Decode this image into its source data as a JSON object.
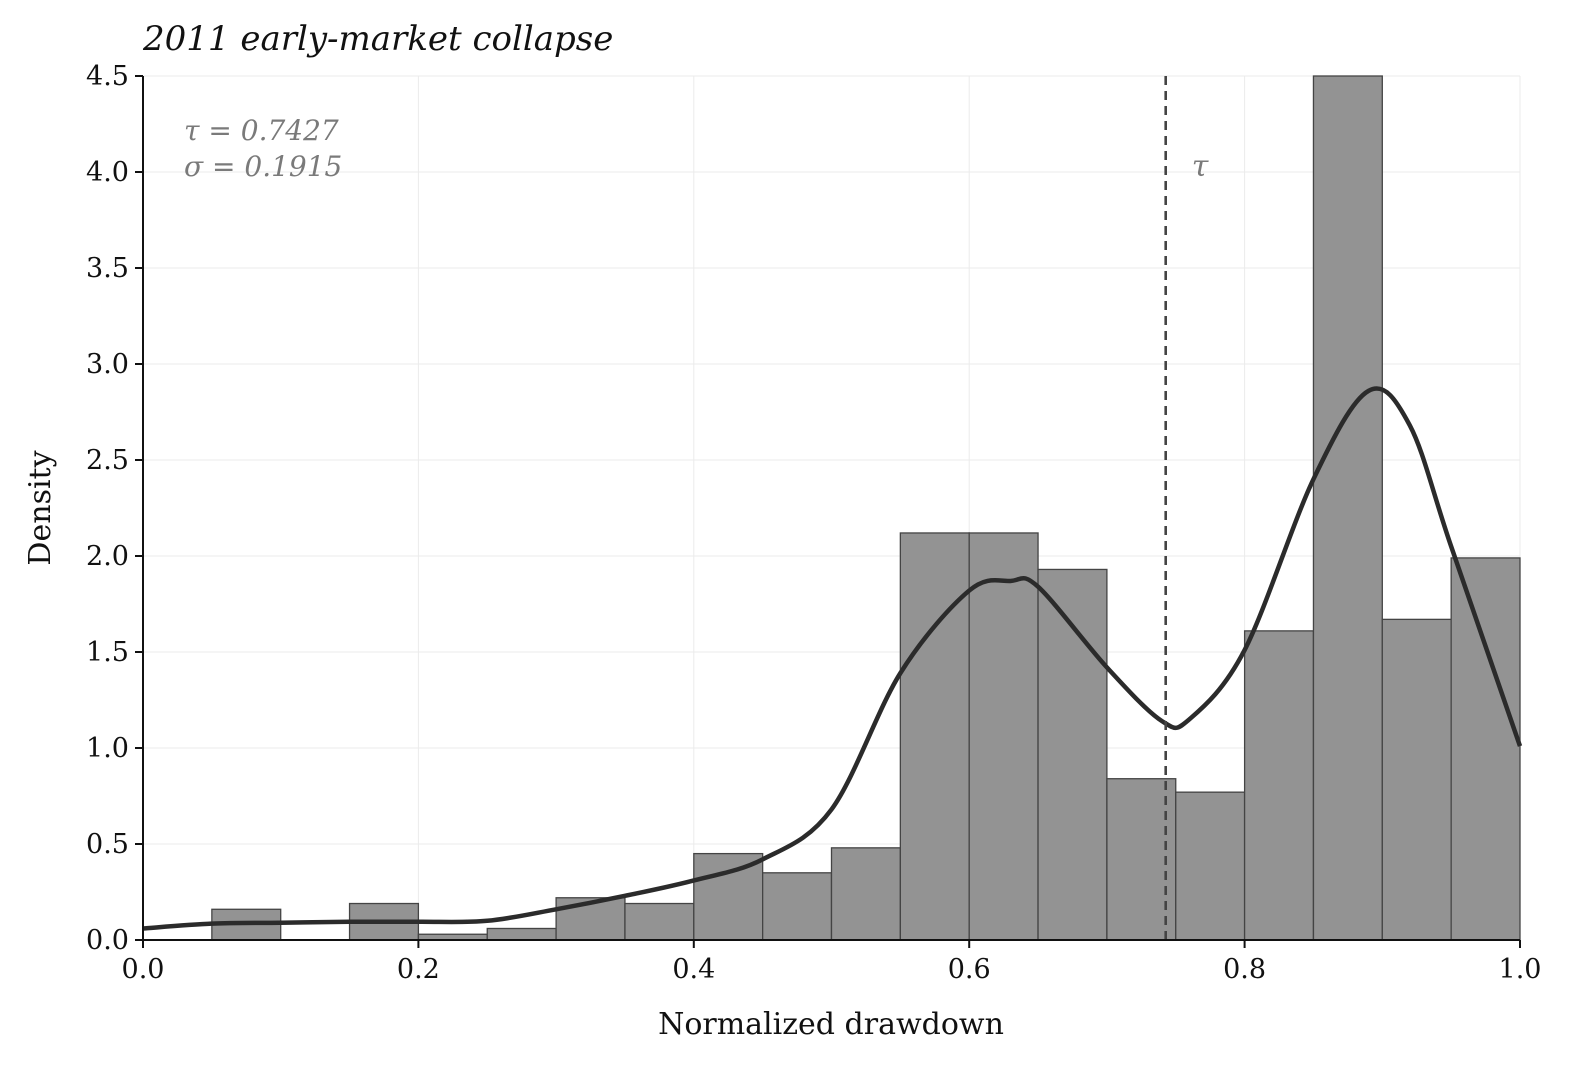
{
  "chart_data": {
    "type": "bar",
    "title": "2011 early-market collapse",
    "xlabel": "Normalized drawdown",
    "ylabel": "Density",
    "xlim": [
      0.0,
      1.0
    ],
    "ylim": [
      0.0,
      4.5
    ],
    "xticks": [
      "0.0",
      "0.2",
      "0.4",
      "0.6",
      "0.8",
      "1.0"
    ],
    "yticks": [
      "0.0",
      "0.5",
      "1.0",
      "1.5",
      "2.0",
      "2.5",
      "3.0",
      "3.5",
      "4.0",
      "4.5"
    ],
    "grid": true,
    "bin_width": 0.05,
    "bin_starts": [
      0.0,
      0.05,
      0.1,
      0.15,
      0.2,
      0.25,
      0.3,
      0.35,
      0.4,
      0.45,
      0.5,
      0.55,
      0.6,
      0.65,
      0.7,
      0.75,
      0.8,
      0.85,
      0.9,
      0.95
    ],
    "values": [
      0.0,
      0.16,
      0.0,
      0.19,
      0.03,
      0.06,
      0.22,
      0.19,
      0.45,
      0.35,
      0.48,
      2.12,
      2.12,
      1.93,
      0.84,
      0.77,
      1.61,
      4.6,
      1.67,
      1.99
    ],
    "kde": {
      "x": [
        0.0,
        0.05,
        0.1,
        0.15,
        0.2,
        0.25,
        0.3,
        0.35,
        0.4,
        0.45,
        0.5,
        0.55,
        0.6,
        0.63,
        0.65,
        0.7,
        0.74,
        0.76,
        0.8,
        0.85,
        0.89,
        0.92,
        0.95,
        1.0
      ],
      "y": [
        0.06,
        0.085,
        0.09,
        0.095,
        0.095,
        0.1,
        0.16,
        0.23,
        0.31,
        0.42,
        0.68,
        1.39,
        1.82,
        1.87,
        1.84,
        1.42,
        1.14,
        1.15,
        1.51,
        2.4,
        2.86,
        2.68,
        2.05,
        1.01
      ]
    },
    "threshold": {
      "label": "τ",
      "value": 0.7427
    },
    "annotations": [
      "τ = 0.7427",
      "σ = 0.1915"
    ]
  }
}
